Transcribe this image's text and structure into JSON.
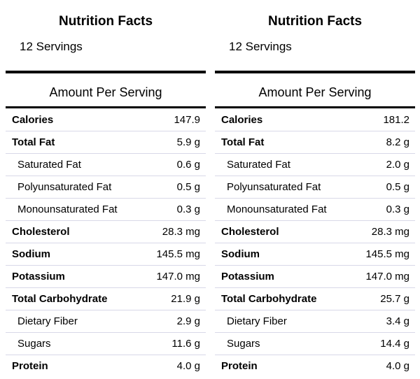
{
  "panels": [
    {
      "title": "Nutrition Facts",
      "servings": "12 Servings",
      "amount_label": "Amount Per Serving",
      "rows": [
        {
          "name": "Calories",
          "value": "147.9",
          "sub": false
        },
        {
          "name": "Total Fat",
          "value": "5.9 g",
          "sub": false
        },
        {
          "name": "Saturated Fat",
          "value": "0.6 g",
          "sub": true
        },
        {
          "name": "Polyunsaturated Fat",
          "value": "0.5 g",
          "sub": true
        },
        {
          "name": "Monounsaturated Fat",
          "value": "0.3 g",
          "sub": true
        },
        {
          "name": "Cholesterol",
          "value": "28.3 mg",
          "sub": false
        },
        {
          "name": "Sodium",
          "value": "145.5 mg",
          "sub": false
        },
        {
          "name": "Potassium",
          "value": "147.0 mg",
          "sub": false
        },
        {
          "name": "Total Carbohydrate",
          "value": "21.9 g",
          "sub": false
        },
        {
          "name": "Dietary Fiber",
          "value": "2.9 g",
          "sub": true
        },
        {
          "name": "Sugars",
          "value": "11.6 g",
          "sub": true
        },
        {
          "name": "Protein",
          "value": "4.0 g",
          "sub": false
        }
      ]
    },
    {
      "title": "Nutrition Facts",
      "servings": "12 Servings",
      "amount_label": "Amount Per Serving",
      "rows": [
        {
          "name": "Calories",
          "value": "181.2",
          "sub": false
        },
        {
          "name": "Total Fat",
          "value": "8.2 g",
          "sub": false
        },
        {
          "name": "Saturated Fat",
          "value": "2.0 g",
          "sub": true
        },
        {
          "name": "Polyunsaturated Fat",
          "value": "0.5 g",
          "sub": true
        },
        {
          "name": "Monounsaturated Fat",
          "value": "0.3 g",
          "sub": true
        },
        {
          "name": "Cholesterol",
          "value": "28.3 mg",
          "sub": false
        },
        {
          "name": "Sodium",
          "value": "145.5 mg",
          "sub": false
        },
        {
          "name": "Potassium",
          "value": "147.0 mg",
          "sub": false
        },
        {
          "name": "Total Carbohydrate",
          "value": "25.7 g",
          "sub": false
        },
        {
          "name": "Dietary Fiber",
          "value": "3.4 g",
          "sub": true
        },
        {
          "name": "Sugars",
          "value": "14.4 g",
          "sub": true
        },
        {
          "name": "Protein",
          "value": "4.0 g",
          "sub": false
        }
      ]
    }
  ]
}
